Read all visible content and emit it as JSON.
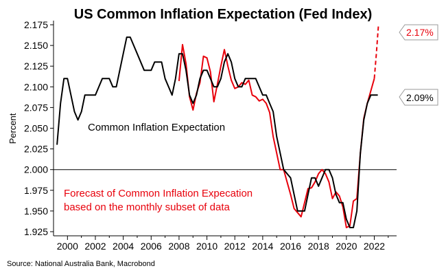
{
  "chart_data": {
    "type": "line",
    "title": "US Common Inflation Expectation (Fed Index)",
    "ylabel": "Percent",
    "xlabel": "",
    "xlim": [
      1999.0,
      2023.6
    ],
    "ylim": [
      1.92,
      2.18
    ],
    "x_ticks": [
      2000,
      2002,
      2004,
      2006,
      2008,
      2010,
      2012,
      2014,
      2016,
      2018,
      2020,
      2022
    ],
    "y_ticks": [
      "1.925",
      "1.950",
      "1.975",
      "2.000",
      "2.025",
      "2.050",
      "2.075",
      "2.100",
      "2.125",
      "2.150",
      "2.175"
    ],
    "reference_line": 2.0,
    "grid": false,
    "annotations": [
      {
        "text": "Common Inflation Expectation",
        "color": "#000000"
      },
      {
        "text": "Forecast of Common Inflation Expecation",
        "color": "#e8000b"
      },
      {
        "text": "based on the monthly subset of data",
        "color": "#e8000b"
      }
    ],
    "callouts": [
      {
        "text": "2.17%",
        "color": "#e8000b",
        "y": 2.17
      },
      {
        "text": "2.09%",
        "color": "#000000",
        "y": 2.09
      }
    ],
    "source": "Source: National Australia Bank, Macrobond",
    "series": [
      {
        "name": "Common Inflation Expectation",
        "color": "#000000",
        "points": [
          [
            1999.25,
            2.03
          ],
          [
            1999.5,
            2.08
          ],
          [
            1999.75,
            2.11
          ],
          [
            2000.0,
            2.11
          ],
          [
            2000.25,
            2.09
          ],
          [
            2000.5,
            2.07
          ],
          [
            2000.75,
            2.06
          ],
          [
            2001.0,
            2.07
          ],
          [
            2001.25,
            2.09
          ],
          [
            2001.5,
            2.09
          ],
          [
            2002.0,
            2.09
          ],
          [
            2002.5,
            2.11
          ],
          [
            2003.0,
            2.11
          ],
          [
            2003.25,
            2.1
          ],
          [
            2003.5,
            2.1
          ],
          [
            2004.0,
            2.14
          ],
          [
            2004.25,
            2.16
          ],
          [
            2004.5,
            2.16
          ],
          [
            2005.0,
            2.14
          ],
          [
            2005.5,
            2.12
          ],
          [
            2006.0,
            2.12
          ],
          [
            2006.25,
            2.13
          ],
          [
            2006.75,
            2.13
          ],
          [
            2007.0,
            2.11
          ],
          [
            2007.5,
            2.09
          ],
          [
            2007.75,
            2.11
          ],
          [
            2008.0,
            2.14
          ],
          [
            2008.25,
            2.14
          ],
          [
            2008.5,
            2.12
          ],
          [
            2008.75,
            2.09
          ],
          [
            2009.0,
            2.08
          ],
          [
            2009.25,
            2.09
          ],
          [
            2009.5,
            2.11
          ],
          [
            2009.75,
            2.12
          ],
          [
            2010.0,
            2.12
          ],
          [
            2010.25,
            2.11
          ],
          [
            2010.5,
            2.1
          ],
          [
            2010.75,
            2.1
          ],
          [
            2011.0,
            2.11
          ],
          [
            2011.25,
            2.13
          ],
          [
            2011.5,
            2.14
          ],
          [
            2011.75,
            2.13
          ],
          [
            2012.0,
            2.11
          ],
          [
            2012.25,
            2.1
          ],
          [
            2012.5,
            2.1
          ],
          [
            2012.75,
            2.11
          ],
          [
            2013.0,
            2.11
          ],
          [
            2013.5,
            2.11
          ],
          [
            2014.0,
            2.09
          ],
          [
            2014.25,
            2.09
          ],
          [
            2014.5,
            2.08
          ],
          [
            2014.75,
            2.07
          ],
          [
            2015.0,
            2.04
          ],
          [
            2015.25,
            2.02
          ],
          [
            2015.5,
            2.0
          ],
          [
            2016.0,
            1.99
          ],
          [
            2016.25,
            1.97
          ],
          [
            2016.5,
            1.95
          ],
          [
            2017.0,
            1.95
          ],
          [
            2017.25,
            1.97
          ],
          [
            2017.5,
            1.99
          ],
          [
            2017.75,
            1.99
          ],
          [
            2018.0,
            1.98
          ],
          [
            2018.25,
            1.99
          ],
          [
            2018.5,
            2.0
          ],
          [
            2018.75,
            2.0
          ],
          [
            2019.0,
            1.99
          ],
          [
            2019.25,
            1.97
          ],
          [
            2019.5,
            1.96
          ],
          [
            2019.75,
            1.96
          ],
          [
            2020.0,
            1.94
          ],
          [
            2020.25,
            1.93
          ],
          [
            2020.5,
            1.93
          ],
          [
            2020.75,
            1.95
          ],
          [
            2021.0,
            2.02
          ],
          [
            2021.25,
            2.06
          ],
          [
            2021.5,
            2.08
          ],
          [
            2021.75,
            2.09
          ],
          [
            2022.0,
            2.09
          ],
          [
            2022.25,
            2.09
          ]
        ]
      },
      {
        "name": "Forecast of Common Inflation Expecation",
        "color": "#e8000b",
        "points": [
          [
            2008.0,
            2.107
          ],
          [
            2008.25,
            2.151
          ],
          [
            2008.5,
            2.128
          ],
          [
            2008.75,
            2.088
          ],
          [
            2009.0,
            2.072
          ],
          [
            2009.25,
            2.092
          ],
          [
            2009.5,
            2.105
          ],
          [
            2009.75,
            2.137
          ],
          [
            2010.0,
            2.135
          ],
          [
            2010.25,
            2.118
          ],
          [
            2010.5,
            2.082
          ],
          [
            2010.75,
            2.103
          ],
          [
            2011.0,
            2.125
          ],
          [
            2011.25,
            2.145
          ],
          [
            2011.5,
            2.125
          ],
          [
            2011.75,
            2.108
          ],
          [
            2012.0,
            2.098
          ],
          [
            2012.25,
            2.1
          ],
          [
            2012.5,
            2.105
          ],
          [
            2012.75,
            2.103
          ],
          [
            2013.0,
            2.108
          ],
          [
            2013.25,
            2.09
          ],
          [
            2013.5,
            2.088
          ],
          [
            2013.75,
            2.083
          ],
          [
            2014.0,
            2.085
          ],
          [
            2014.25,
            2.08
          ],
          [
            2014.5,
            2.069
          ],
          [
            2014.75,
            2.04
          ],
          [
            2015.0,
            2.02
          ],
          [
            2015.25,
            2.0
          ],
          [
            2015.5,
            2.0
          ],
          [
            2015.75,
            1.985
          ],
          [
            2016.0,
            1.97
          ],
          [
            2016.25,
            1.953
          ],
          [
            2016.5,
            1.948
          ],
          [
            2016.75,
            1.943
          ],
          [
            2017.0,
            1.96
          ],
          [
            2017.25,
            1.977
          ],
          [
            2017.5,
            1.978
          ],
          [
            2017.75,
            1.985
          ],
          [
            2018.0,
            1.995
          ],
          [
            2018.25,
            2.0
          ],
          [
            2018.5,
            1.995
          ],
          [
            2018.75,
            1.985
          ],
          [
            2019.0,
            1.965
          ],
          [
            2019.25,
            1.973
          ],
          [
            2019.5,
            1.968
          ],
          [
            2019.75,
            1.955
          ],
          [
            2020.0,
            1.93
          ],
          [
            2020.25,
            1.932
          ],
          [
            2020.5,
            1.962
          ],
          [
            2020.75,
            1.965
          ],
          [
            2021.0,
            2.02
          ],
          [
            2021.25,
            2.062
          ],
          [
            2021.5,
            2.08
          ],
          [
            2021.75,
            2.095
          ],
          [
            2022.0,
            2.11
          ]
        ],
        "dashed_points": [
          [
            2022.0,
            2.11
          ],
          [
            2022.15,
            2.14
          ],
          [
            2022.3,
            2.175
          ]
        ]
      }
    ]
  }
}
